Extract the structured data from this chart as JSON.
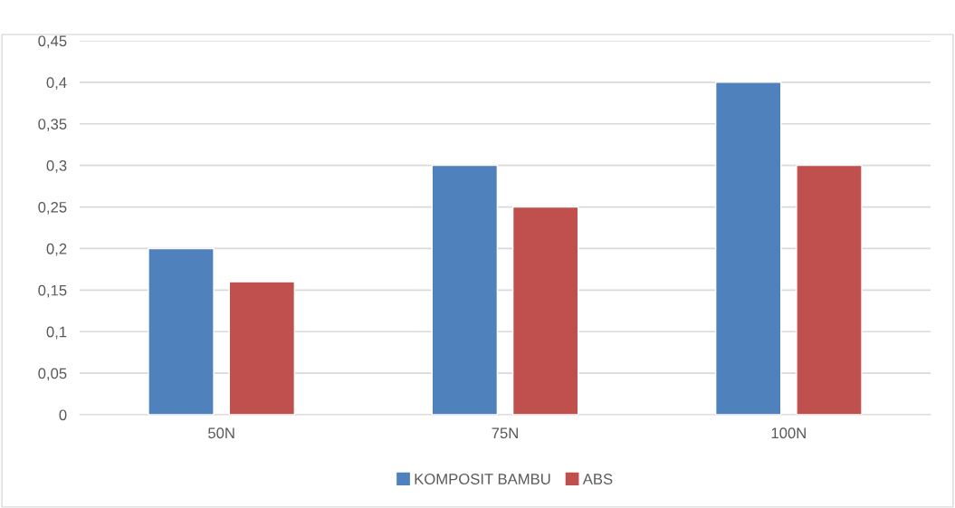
{
  "chart_data": {
    "type": "bar",
    "categories": [
      "50N",
      "75N",
      "100N"
    ],
    "series": [
      {
        "name": "KOMPOSIT BAMBU",
        "color": "#4f81bd",
        "values": [
          0.2,
          0.3,
          0.4
        ]
      },
      {
        "name": "ABS",
        "color": "#c0504d",
        "values": [
          0.16,
          0.25,
          0.3
        ]
      }
    ],
    "ylim": [
      0,
      0.45
    ],
    "yticks": [
      {
        "value": 0,
        "label": "0"
      },
      {
        "value": 0.05,
        "label": "0,05"
      },
      {
        "value": 0.1,
        "label": "0,1"
      },
      {
        "value": 0.15,
        "label": "0,15"
      },
      {
        "value": 0.2,
        "label": "0,2"
      },
      {
        "value": 0.25,
        "label": "0,25"
      },
      {
        "value": 0.3,
        "label": "0,3"
      },
      {
        "value": 0.35,
        "label": "0,35"
      },
      {
        "value": 0.4,
        "label": "0,4"
      },
      {
        "value": 0.45,
        "label": "0,45"
      }
    ],
    "grid": "y",
    "legend": "bottom"
  }
}
